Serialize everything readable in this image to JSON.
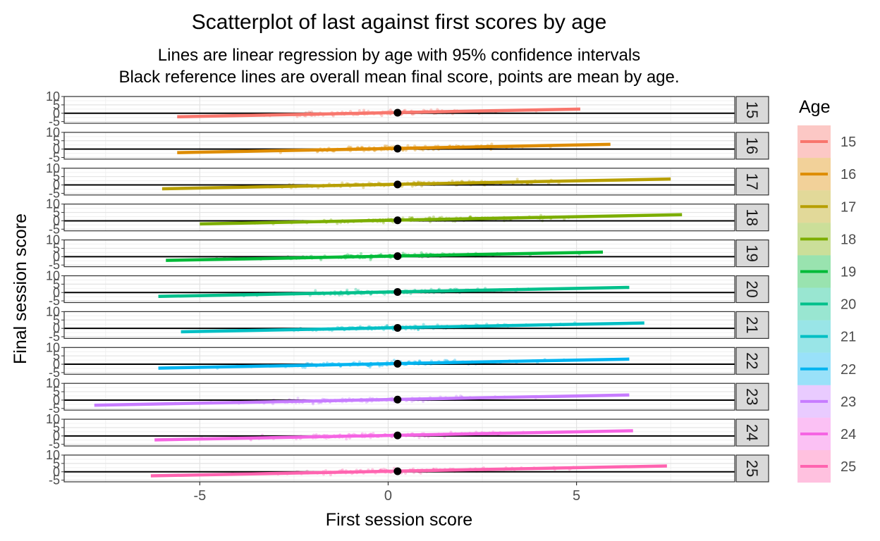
{
  "chart_data": {
    "type": "scatter",
    "title": "Scatterplot of last against first scores by age",
    "subtitle_lines": [
      "Lines are linear regression by age with 95% confidence intervals",
      "Black reference lines are overall mean final score, points are mean by age."
    ],
    "xlabel": "First session score",
    "ylabel": "Final session score",
    "xlim": [
      -8.6,
      9.2
    ],
    "ylim": [
      -6,
      10
    ],
    "x_ticks": [
      -5,
      0,
      5
    ],
    "y_ticks": [
      -5,
      0,
      5,
      10
    ],
    "reference_line_y": 0,
    "grid": true,
    "legend": {
      "title": "Age",
      "position": "right"
    },
    "facets": [
      {
        "age": "15",
        "color": "#F8766D",
        "x_range": [
          -5.6,
          5.1
        ],
        "slope": 0.43,
        "intercept": 0.3,
        "mean_point": [
          0.25,
          0.3
        ]
      },
      {
        "age": "16",
        "color": "#DE8C00",
        "x_range": [
          -5.6,
          5.9
        ],
        "slope": 0.43,
        "intercept": 0.3,
        "mean_point": [
          0.25,
          0.3
        ]
      },
      {
        "age": "17",
        "color": "#B79F00",
        "x_range": [
          -6.0,
          7.5
        ],
        "slope": 0.43,
        "intercept": 0.3,
        "mean_point": [
          0.25,
          0.3
        ]
      },
      {
        "age": "18",
        "color": "#7CAE00",
        "x_range": [
          -5.0,
          7.8
        ],
        "slope": 0.43,
        "intercept": 0.3,
        "mean_point": [
          0.25,
          0.3
        ]
      },
      {
        "age": "19",
        "color": "#00BA38",
        "x_range": [
          -5.9,
          5.7
        ],
        "slope": 0.43,
        "intercept": 0.3,
        "mean_point": [
          0.25,
          0.3
        ]
      },
      {
        "age": "20",
        "color": "#00C08B",
        "x_range": [
          -6.1,
          6.4
        ],
        "slope": 0.43,
        "intercept": 0.3,
        "mean_point": [
          0.25,
          0.3
        ]
      },
      {
        "age": "21",
        "color": "#00BFC4",
        "x_range": [
          -5.5,
          6.8
        ],
        "slope": 0.43,
        "intercept": 0.3,
        "mean_point": [
          0.25,
          0.3
        ]
      },
      {
        "age": "22",
        "color": "#00B4F0",
        "x_range": [
          -6.1,
          6.4
        ],
        "slope": 0.43,
        "intercept": 0.3,
        "mean_point": [
          0.25,
          0.3
        ]
      },
      {
        "age": "23",
        "color": "#C77CFF",
        "x_range": [
          -7.8,
          6.4
        ],
        "slope": 0.43,
        "intercept": 0.3,
        "mean_point": [
          0.25,
          0.3
        ]
      },
      {
        "age": "24",
        "color": "#F564E3",
        "x_range": [
          -6.2,
          6.5
        ],
        "slope": 0.43,
        "intercept": 0.3,
        "mean_point": [
          0.25,
          0.3
        ]
      },
      {
        "age": "25",
        "color": "#FF64B0",
        "x_range": [
          -6.3,
          7.4
        ],
        "slope": 0.43,
        "intercept": 0.3,
        "mean_point": [
          0.25,
          0.3
        ]
      }
    ]
  }
}
